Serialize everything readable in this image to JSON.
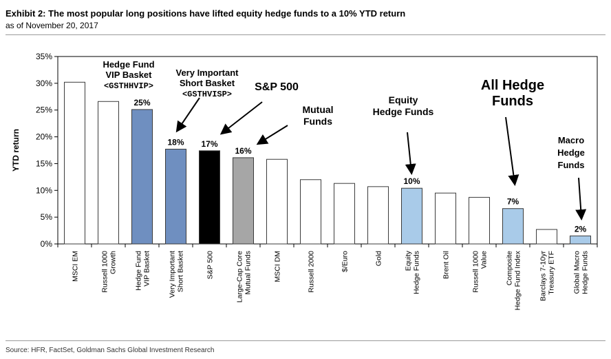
{
  "header": {
    "title": "Exhibit 2: The most popular long positions have lifted equity hedge funds to a 10% YTD return",
    "subtitle": "as of November 20, 2017"
  },
  "footer": {
    "source": "Source: HFR, FactSet, Goldman Sachs Global Investment Research"
  },
  "colors": {
    "white": "#ffffff",
    "blue": "#6f8fc0",
    "black": "#000000",
    "gray": "#a6a6a6",
    "lightblue": "#a9cbe9",
    "stroke": "#3a3a3a"
  },
  "chart_data": {
    "type": "bar",
    "ylabel": "YTD return",
    "ylim": [
      0,
      35
    ],
    "yticks": [
      "0%",
      "5%",
      "10%",
      "15%",
      "20%",
      "25%",
      "30%",
      "35%"
    ],
    "categories": [
      [
        "MSCI EM"
      ],
      [
        "Russell 1000",
        "Growth"
      ],
      [
        "Hedge Fund",
        "VIP Basket"
      ],
      [
        "Very Important",
        "Short Basket"
      ],
      [
        "S&P 500"
      ],
      [
        "Large-Cap Core",
        "Mutual Funds"
      ],
      [
        "MSCI DM"
      ],
      [
        "Russell 2000"
      ],
      [
        "$/Euro"
      ],
      [
        "Gold"
      ],
      [
        "Equity",
        "Hedge Funds"
      ],
      [
        "Brent Oil"
      ],
      [
        "Russell 1000",
        "Value"
      ],
      [
        "Composite",
        "Hedge Fund Index"
      ],
      [
        "Barclays 7-10yr",
        "Treasury ETF"
      ],
      [
        "Global Macro",
        "Hedge Funds"
      ]
    ],
    "values": [
      30.2,
      26.6,
      25.1,
      17.7,
      17.4,
      16.1,
      15.8,
      12.0,
      11.3,
      10.7,
      10.4,
      9.5,
      8.7,
      6.6,
      2.7,
      1.5
    ],
    "bar_colors": [
      "white",
      "white",
      "blue",
      "blue",
      "black",
      "gray",
      "white",
      "white",
      "white",
      "white",
      "lightblue",
      "white",
      "white",
      "lightblue",
      "white",
      "lightblue"
    ],
    "value_labels": [
      "",
      "",
      "25%",
      "18%",
      "17%",
      "16%",
      "",
      "",
      "",
      "",
      "10%",
      "",
      "",
      "7%",
      "",
      "2%"
    ],
    "annotations": [
      {
        "lines": [
          "Hedge Fund",
          "VIP Basket",
          "<GSTHHVIP>"
        ]
      },
      {
        "lines": [
          "Very Important",
          "Short Basket",
          "<GSTHVISP>"
        ]
      },
      {
        "lines": [
          "S&P 500"
        ]
      },
      {
        "lines": [
          "Mutual",
          "Funds"
        ]
      },
      {
        "lines": [
          "Equity",
          "Hedge Funds"
        ]
      },
      {
        "lines": [
          "All Hedge",
          "Funds"
        ]
      },
      {
        "lines": [
          "Macro",
          "Hedge",
          "Funds"
        ]
      }
    ]
  }
}
